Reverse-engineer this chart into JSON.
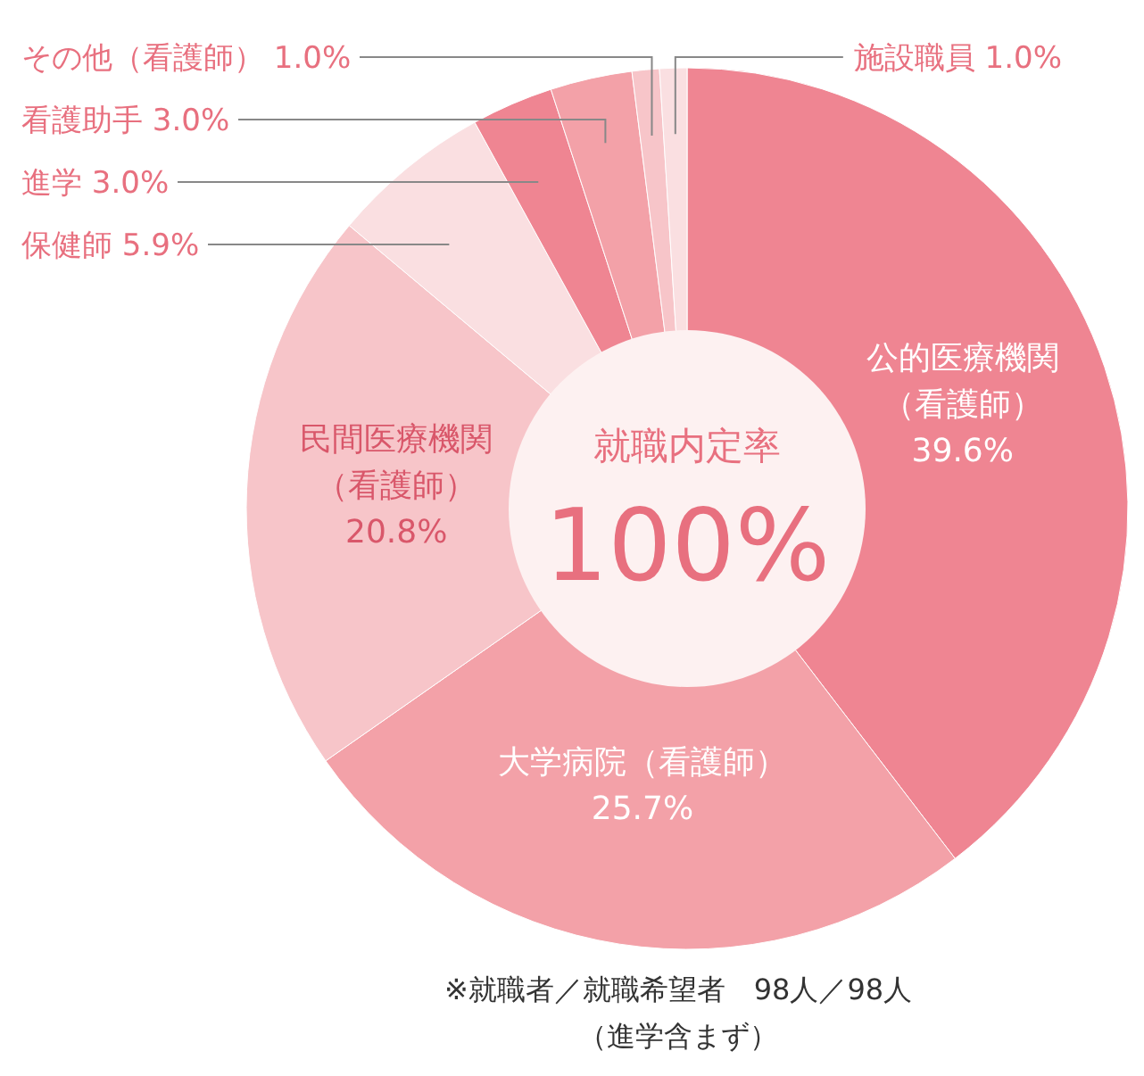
{
  "chart_data": {
    "type": "donut",
    "categories": [
      "公的医療機関（看護師）",
      "大学病院（看護師）",
      "民間医療機関（看護師）",
      "保健師",
      "進学",
      "看護助手",
      "その他（看護師）",
      "施設職員"
    ],
    "values": [
      39.6,
      25.7,
      20.8,
      5.9,
      3.0,
      3.0,
      1.0,
      1.0
    ],
    "colors": [
      "#ef8592",
      "#f3a1a8",
      "#f7c5c9",
      "#fadfe1",
      "#ef8592",
      "#f3a1a8",
      "#f7c5c9",
      "#fadfe1"
    ],
    "value_labels": [
      "39.6%",
      "25.7%",
      "20.8%",
      "5.9%",
      "3.0%",
      "3.0%",
      "1.0%",
      "1.0%"
    ],
    "annotations": [
      "就職内定率",
      "100%",
      "※就職者／就職希望者　98人／98人",
      "（進学含まず）"
    ]
  }
}
